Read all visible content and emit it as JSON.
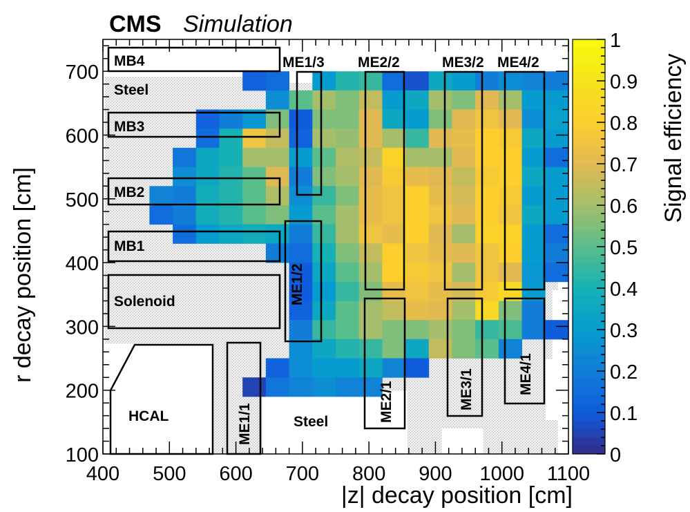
{
  "header": {
    "experiment": "CMS",
    "label": "Simulation"
  },
  "chart_data": {
    "type": "heatmap",
    "xlabel": "|z| decay position [cm]",
    "ylabel": "r decay position [cm]",
    "zlabel": "Signal efficiency",
    "xlim": [
      400,
      1100
    ],
    "ylim": [
      100,
      750
    ],
    "zlim": [
      0,
      1
    ],
    "x_ticks": [
      "400",
      "500",
      "600",
      "700",
      "800",
      "900",
      "1000",
      "1100"
    ],
    "y_ticks": [
      "100",
      "200",
      "300",
      "400",
      "500",
      "600",
      "700"
    ],
    "z_ticks": [
      "0",
      "0.1",
      "0.2",
      "0.3",
      "0.4",
      "0.5",
      "0.6",
      "0.7",
      "0.8",
      "0.9",
      "1"
    ],
    "x_bin_edges": [
      400,
      435,
      470,
      505,
      540,
      575,
      610,
      645,
      680,
      715,
      750,
      785,
      820,
      855,
      890,
      925,
      960,
      995,
      1030,
      1065,
      1100
    ],
    "y_bin_edges": [
      100,
      130,
      160,
      190,
      220,
      250,
      280,
      310,
      340,
      370,
      400,
      430,
      460,
      490,
      520,
      550,
      580,
      610,
      640,
      670,
      700
    ],
    "efficiency_rows": [
      {
        "r_range": [
          670,
          700
        ],
        "values": [
          null,
          null,
          null,
          null,
          null,
          null,
          0.12,
          0.15,
          null,
          0.3,
          0.42,
          0.45,
          0.15,
          0.08,
          0.35,
          0.3,
          0.2,
          0.25,
          0.22,
          0.2
        ]
      },
      {
        "r_range": [
          640,
          670
        ],
        "values": [
          null,
          null,
          null,
          null,
          null,
          null,
          null,
          0.25,
          0.5,
          0.6,
          0.55,
          0.65,
          0.3,
          0.35,
          0.6,
          0.55,
          0.7,
          0.6,
          0.3,
          0.3
        ]
      },
      {
        "r_range": [
          610,
          640
        ],
        "values": [
          null,
          null,
          null,
          null,
          0.12,
          0.2,
          0.28,
          0.55,
          0.1,
          0.55,
          0.55,
          0.7,
          0.35,
          0.3,
          0.55,
          0.7,
          0.75,
          0.7,
          0.25,
          0.32
        ]
      },
      {
        "r_range": [
          580,
          610
        ],
        "values": [
          null,
          null,
          null,
          null,
          0.15,
          0.4,
          0.75,
          0.65,
          0.12,
          0.6,
          0.58,
          0.7,
          0.6,
          0.45,
          0.7,
          0.72,
          0.8,
          0.78,
          0.35,
          0.3
        ]
      },
      {
        "r_range": [
          550,
          580
        ],
        "values": [
          null,
          null,
          null,
          0.18,
          0.35,
          0.4,
          0.6,
          0.6,
          0.3,
          0.5,
          0.62,
          0.65,
          0.82,
          0.6,
          0.6,
          0.7,
          0.8,
          0.8,
          0.3,
          0.15
        ]
      },
      {
        "r_range": [
          520,
          550
        ],
        "values": [
          null,
          null,
          null,
          0.25,
          0.35,
          0.42,
          0.5,
          0.7,
          0.2,
          0.55,
          0.6,
          0.7,
          0.78,
          0.72,
          0.7,
          0.65,
          0.78,
          0.8,
          0.35,
          0.3
        ]
      },
      {
        "r_range": [
          490,
          520
        ],
        "values": [
          null,
          null,
          0.22,
          0.2,
          0.38,
          0.42,
          0.5,
          0.62,
          0.25,
          0.45,
          0.55,
          0.72,
          0.75,
          0.8,
          0.72,
          0.68,
          0.8,
          0.78,
          0.3,
          0.3
        ]
      },
      {
        "r_range": [
          460,
          490
        ],
        "values": [
          null,
          null,
          0.15,
          0.2,
          0.38,
          0.42,
          0.5,
          0.55,
          0.3,
          0.5,
          0.6,
          0.72,
          0.75,
          0.8,
          0.75,
          0.7,
          0.8,
          0.75,
          0.35,
          0.3
        ]
      },
      {
        "r_range": [
          430,
          460
        ],
        "values": [
          null,
          null,
          null,
          0.15,
          0.3,
          0.35,
          0.38,
          0.35,
          0.2,
          0.45,
          0.6,
          0.75,
          0.72,
          0.8,
          0.7,
          0.6,
          0.82,
          0.82,
          0.3,
          0.15
        ]
      },
      {
        "r_range": [
          400,
          430
        ],
        "values": [
          null,
          null,
          null,
          null,
          null,
          null,
          null,
          0.2,
          0.15,
          0.4,
          0.55,
          0.65,
          0.8,
          0.75,
          0.72,
          0.7,
          0.75,
          0.8,
          0.3,
          0.2
        ]
      },
      {
        "r_range": [
          370,
          400
        ],
        "values": [
          null,
          null,
          null,
          null,
          null,
          null,
          null,
          null,
          0.1,
          0.35,
          0.5,
          0.6,
          0.8,
          0.78,
          0.75,
          0.6,
          0.75,
          0.7,
          0.28,
          0.15
        ]
      },
      {
        "r_range": [
          340,
          370
        ],
        "values": [
          null,
          null,
          null,
          null,
          null,
          null,
          null,
          null,
          0.1,
          0.3,
          0.45,
          0.55,
          0.72,
          0.75,
          0.72,
          0.68,
          0.78,
          0.85,
          0.3,
          null
        ]
      },
      {
        "r_range": [
          310,
          340
        ],
        "values": [
          null,
          null,
          null,
          null,
          null,
          null,
          null,
          null,
          0.12,
          0.35,
          0.5,
          0.6,
          0.65,
          0.72,
          0.7,
          0.6,
          0.85,
          0.55,
          0.2,
          null
        ]
      },
      {
        "r_range": [
          280,
          310
        ],
        "values": [
          null,
          null,
          null,
          null,
          null,
          null,
          null,
          null,
          0.2,
          0.45,
          0.5,
          0.6,
          0.55,
          0.55,
          0.6,
          0.55,
          0.45,
          0.48,
          0.2,
          0.1
        ]
      },
      {
        "r_range": [
          250,
          280
        ],
        "values": [
          null,
          null,
          null,
          null,
          null,
          null,
          null,
          null,
          0.25,
          0.35,
          0.42,
          0.45,
          0.55,
          0.35,
          0.65,
          0.55,
          0.5,
          0.22,
          null,
          null
        ]
      },
      {
        "r_range": [
          220,
          250
        ],
        "values": [
          null,
          null,
          null,
          null,
          null,
          null,
          null,
          0.12,
          0.25,
          0.3,
          0.3,
          0.35,
          0.22,
          0.1,
          null,
          null,
          null,
          null,
          null,
          null
        ]
      },
      {
        "r_range": [
          190,
          220
        ],
        "values": [
          null,
          null,
          null,
          null,
          null,
          null,
          0.05,
          0.18,
          0.22,
          0.25,
          0.22,
          0.22,
          null,
          null,
          null,
          null,
          null,
          null,
          null,
          null
        ]
      }
    ],
    "detector_regions": [
      {
        "label": "MB4"
      },
      {
        "label": "Steel"
      },
      {
        "label": "MB3"
      },
      {
        "label": "MB2"
      },
      {
        "label": "MB1"
      },
      {
        "label": "Solenoid"
      },
      {
        "label": "HCAL"
      },
      {
        "label": "ME1/1"
      },
      {
        "label": "Steel"
      },
      {
        "label": "ME1/2"
      },
      {
        "label": "ME1/3"
      },
      {
        "label": "ME2/2"
      },
      {
        "label": "ME3/2"
      },
      {
        "label": "ME4/2"
      },
      {
        "label": "ME2/1"
      },
      {
        "label": "ME3/1"
      },
      {
        "label": "ME4/1"
      }
    ]
  }
}
